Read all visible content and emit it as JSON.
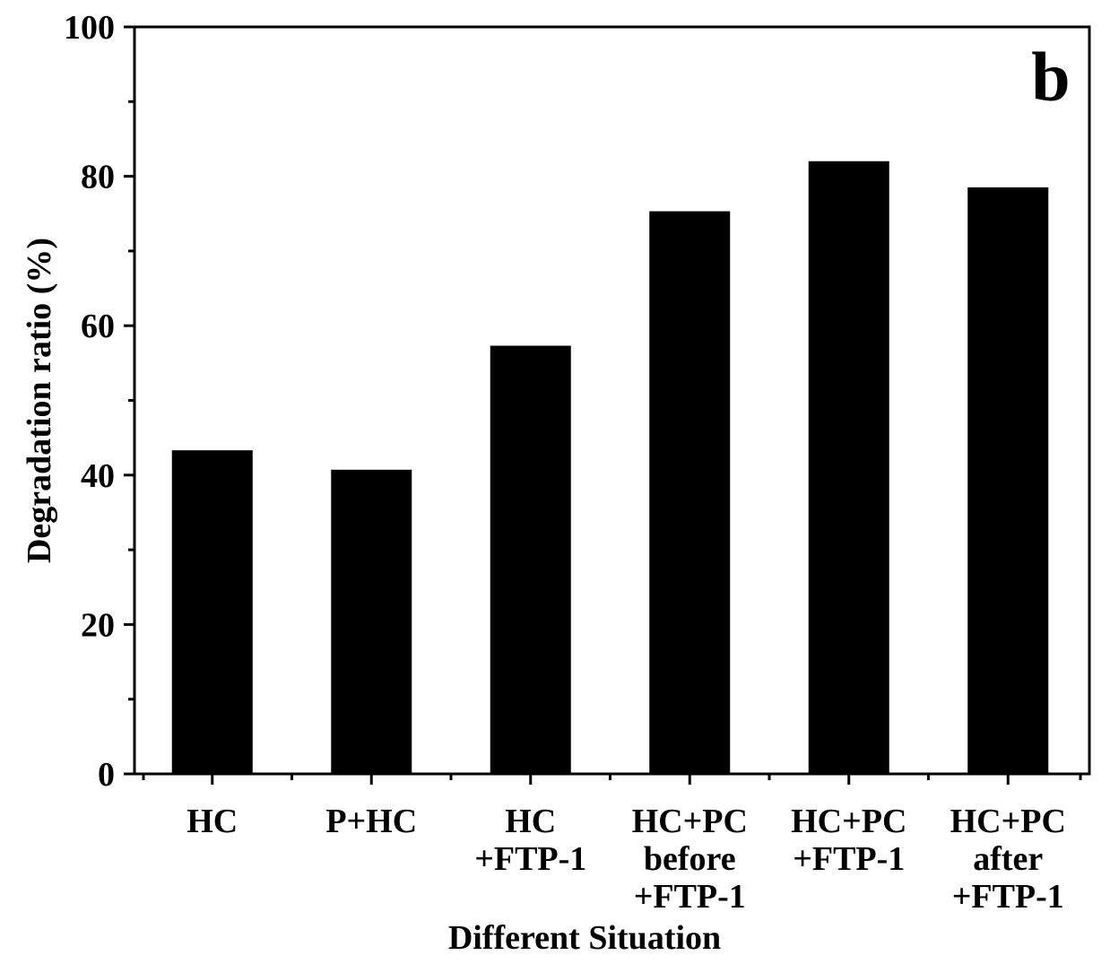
{
  "chart_data": {
    "type": "bar",
    "panel_label": "b",
    "categories": [
      [
        "HC"
      ],
      [
        "P+HC"
      ],
      [
        "HC",
        "+FTP-1"
      ],
      [
        "HC+PC",
        "before",
        "+FTP-1"
      ],
      [
        "HC+PC",
        "+FTP-1"
      ],
      [
        "HC+PC",
        "after",
        "+FTP-1"
      ]
    ],
    "values": [
      43.2,
      40.6,
      57.2,
      75.2,
      81.9,
      78.4
    ],
    "xlabel": "Different Situation",
    "ylabel": "Degradation ratio (%)",
    "ylim": [
      0,
      100
    ],
    "yticks": [
      0,
      20,
      40,
      60,
      80,
      100
    ],
    "bar_color": "#000000",
    "grid": false,
    "legend": "none"
  }
}
